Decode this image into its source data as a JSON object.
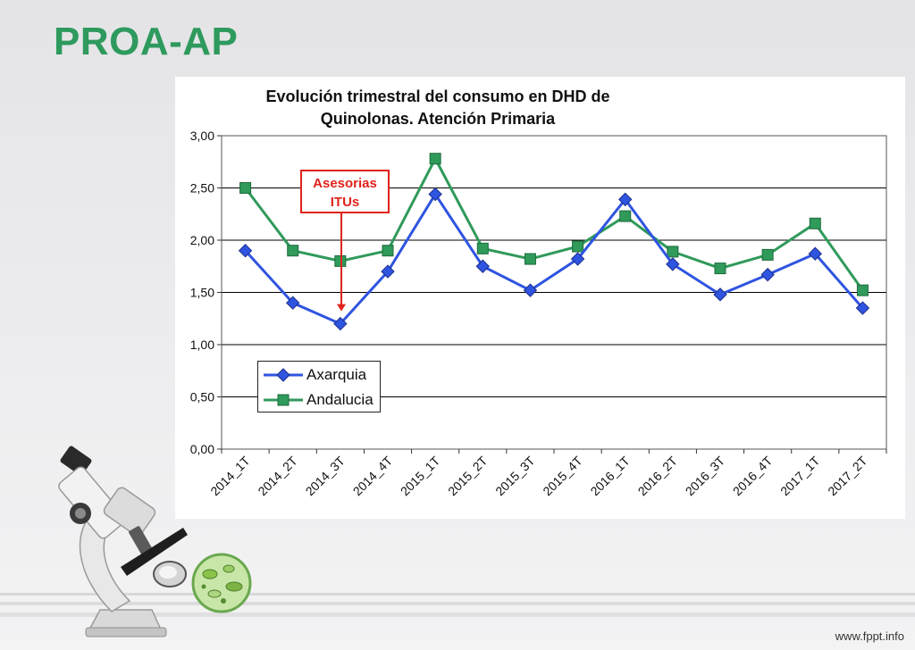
{
  "slide": {
    "title": "PROA-AP",
    "footer": "www.fppt.info"
  },
  "icons": [
    "microscope-icon",
    "bacteria-petri-dish-icon"
  ],
  "colors": {
    "title_green": "#2e9a5e",
    "axarquia": "#2f54e0",
    "andalucia": "#2f9a5a",
    "callout": "#e0231c"
  },
  "chart_data": {
    "type": "line",
    "title": "Evolución trimestral del consumo en DHD de Quinolonas. Atención Primaria",
    "categories": [
      "2014_1T",
      "2014_2T",
      "2014_3T",
      "2014_4T",
      "2015_1T",
      "2015_2T",
      "2015_3T",
      "2015_4T",
      "2016_1T",
      "2016_2T",
      "2016_3T",
      "2016_4T",
      "2017_1T",
      "2017_2T"
    ],
    "series": [
      {
        "name": "Axarquia",
        "marker": "diamond",
        "color": "#2f54e0",
        "values": [
          1.9,
          1.4,
          1.2,
          1.7,
          2.44,
          1.75,
          1.52,
          1.82,
          2.39,
          1.77,
          1.48,
          1.67,
          1.87,
          1.35
        ]
      },
      {
        "name": "Andalucia",
        "marker": "square",
        "color": "#2f9a5a",
        "values": [
          2.5,
          1.9,
          1.8,
          1.9,
          2.78,
          1.92,
          1.82,
          1.94,
          2.23,
          1.89,
          1.73,
          1.86,
          2.16,
          1.52
        ]
      }
    ],
    "ylim": [
      0,
      3
    ],
    "yticks": [
      "0,00",
      "0,50",
      "1,00",
      "1,50",
      "2,00",
      "2,50",
      "3,00"
    ],
    "grid": true,
    "legend_position": "bottom-left",
    "annotation": {
      "lines": [
        "Asesorias",
        "ITUs"
      ],
      "points_to": "2014_3T"
    }
  }
}
